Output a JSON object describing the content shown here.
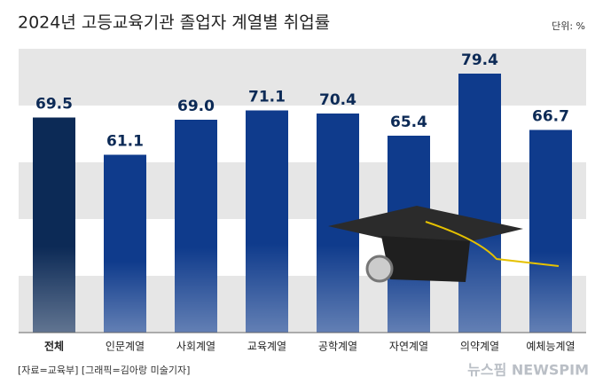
{
  "chart_data": {
    "type": "bar",
    "title": "2024년 고등교육기관 졸업자 계열별 취업률",
    "unit": "단위: %",
    "categories": [
      "전체",
      "인문계열",
      "사회계열",
      "교육계열",
      "공학계열",
      "자연계열",
      "의약계열",
      "예체능계열"
    ],
    "values": [
      69.5,
      61.1,
      69.0,
      71.1,
      70.4,
      65.4,
      79.4,
      66.7
    ],
    "value_labels": [
      "69.5",
      "61.1",
      "69.0",
      "71.1",
      "70.4",
      "65.4",
      "79.4",
      "66.7"
    ],
    "colors": [
      "#0c2a56",
      "#0f3b8c",
      "#0f3b8c",
      "#0f3b8c",
      "#0f3b8c",
      "#0f3b8c",
      "#0f3b8c",
      "#0f3b8c"
    ],
    "ylim": [
      21,
      85
    ],
    "source": "[자료=교육부] [그래픽=김아랑 미술기자]",
    "watermark": "뉴스핌 NEWSPIM"
  }
}
